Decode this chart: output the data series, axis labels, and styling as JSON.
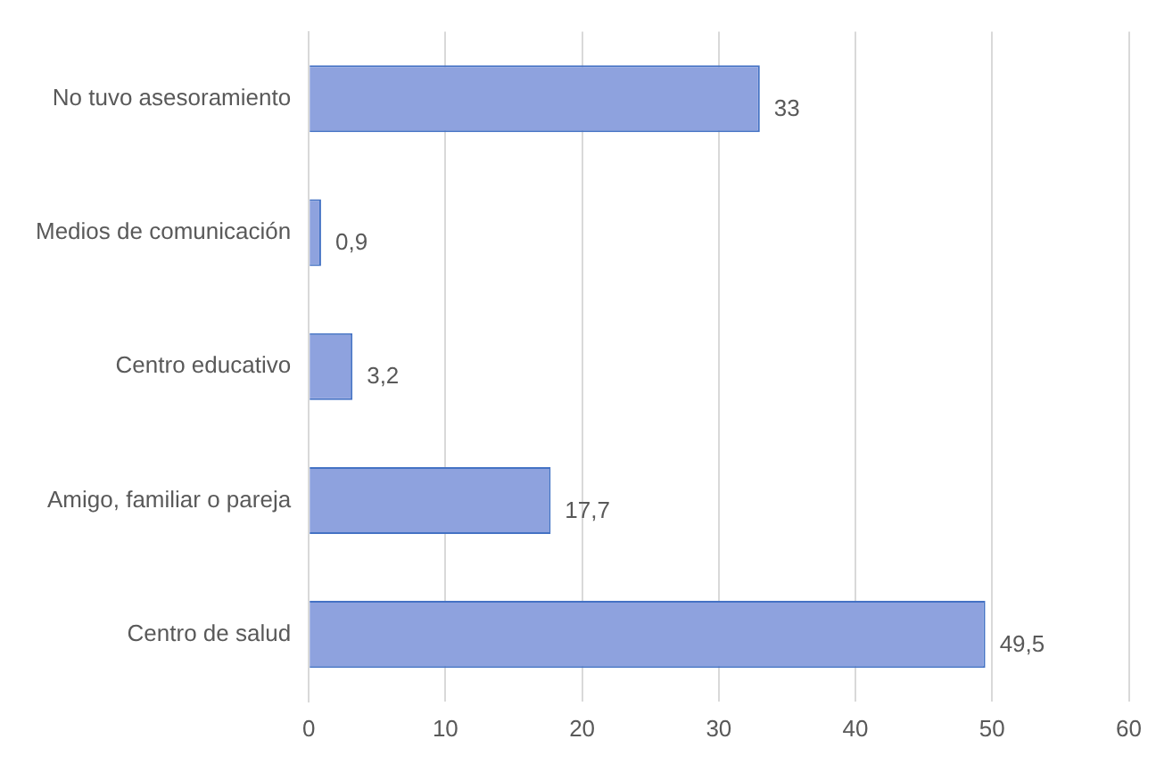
{
  "chart_data": {
    "type": "bar",
    "orientation": "horizontal",
    "categories": [
      "No tuvo asesoramiento",
      "Medios de comunicación",
      "Centro educativo",
      "Amigo, familiar o pareja",
      "Centro de salud"
    ],
    "values": [
      33,
      0.9,
      3.2,
      17.7,
      49.5
    ],
    "value_labels": [
      "33",
      "0,9",
      "3,2",
      "17,7",
      "49,5"
    ],
    "color": "#8ea2de",
    "xlim": [
      0,
      60
    ],
    "xticks": [
      0,
      10,
      20,
      30,
      40,
      50,
      60
    ],
    "grid": "x",
    "legend": false
  }
}
